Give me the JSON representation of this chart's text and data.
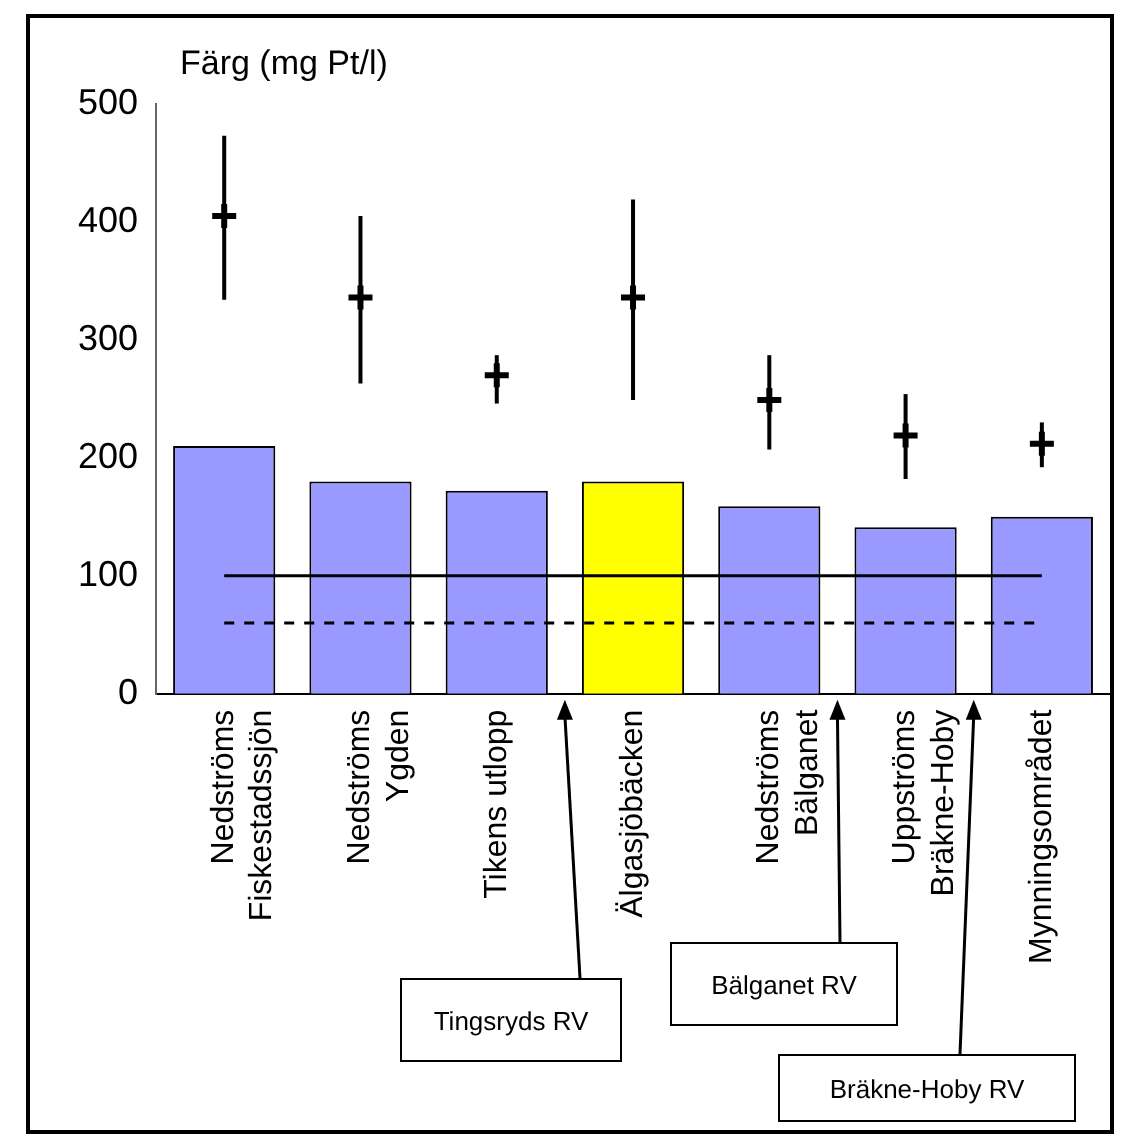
{
  "chart_data": {
    "type": "bar",
    "ylabel": "Färg (mg Pt/l)",
    "categories": [
      "Nedströms\nFiskestadssjön",
      "Nedströms\nYgden",
      "Tikens utlopp",
      "Älgasjöbäcken",
      "Nedströms\nBälganet",
      "Uppströms\nBräkne-Hoby",
      "Mynningsområdet"
    ],
    "series": [
      {
        "colors": [
          "#9999ff",
          "#9999ff",
          "#9999ff",
          "#ffff00",
          "#9999ff",
          "#9999ff",
          "#9999ff"
        ],
        "values": [
          210,
          180,
          172,
          180,
          159,
          141,
          150
        ]
      },
      {
        "type": "scatter",
        "color": "#000000",
        "x": [
          "Nedströms\nFiskestadssjön",
          "Nedströms\nYgden",
          "Tikens utlopp",
          "Älgasjöbäcken",
          "Nedströms\nBälganet",
          "Uppströms\nBräkne-Hoby",
          "Mynningsområdet"
        ],
        "values": [
          405,
          336,
          270,
          336,
          249,
          219,
          212
        ],
        "errors": [
          [
            334,
            473
          ],
          [
            263,
            405
          ],
          [
            246,
            287
          ],
          [
            249,
            419
          ],
          [
            207,
            287
          ],
          [
            182,
            254
          ],
          [
            192,
            230
          ]
        ]
      }
    ],
    "ylim": [
      0,
      500
    ],
    "yticks": [
      0,
      100,
      200,
      300,
      400,
      500
    ],
    "grid": false,
    "legend": false,
    "marker": "cross",
    "ref_lines": [
      {
        "axis": "y",
        "value": 100,
        "color": "#000000",
        "line_style": "solid"
      },
      {
        "axis": "y",
        "value": 60,
        "color": "#000000",
        "line_style": "dashed"
      }
    ],
    "annotations": [
      "Tingsryds RV",
      "Bälganet RV",
      "Bräkne-Hoby RV"
    ]
  }
}
